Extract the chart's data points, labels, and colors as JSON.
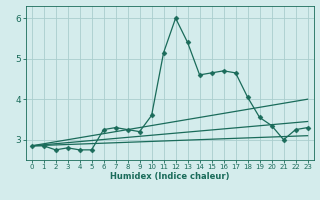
{
  "title": "",
  "xlabel": "Humidex (Indice chaleur)",
  "ylabel": "",
  "background_color": "#d4ecec",
  "grid_color": "#aacece",
  "line_color": "#1a6b5a",
  "xlim": [
    -0.5,
    23.5
  ],
  "ylim": [
    2.5,
    6.3
  ],
  "yticks": [
    3,
    4,
    5,
    6
  ],
  "xticks": [
    0,
    1,
    2,
    3,
    4,
    5,
    6,
    7,
    8,
    9,
    10,
    11,
    12,
    13,
    14,
    15,
    16,
    17,
    18,
    19,
    20,
    21,
    22,
    23
  ],
  "series": [
    {
      "x": [
        0,
        1,
        2,
        3,
        4,
        5,
        6,
        7,
        8,
        9,
        10,
        11,
        12,
        13,
        14,
        15,
        16,
        17,
        18,
        19,
        20,
        21,
        22,
        23
      ],
      "y": [
        2.85,
        2.85,
        2.75,
        2.8,
        2.75,
        2.75,
        3.25,
        3.3,
        3.25,
        3.2,
        3.6,
        5.15,
        6.0,
        5.4,
        4.6,
        4.65,
        4.7,
        4.65,
        4.05,
        3.55,
        3.35,
        3.0,
        3.25,
        3.3
      ],
      "marker": "D",
      "markersize": 2.5,
      "linewidth": 0.9
    },
    {
      "x": [
        0,
        23
      ],
      "y": [
        2.85,
        4.0
      ],
      "marker": null,
      "markersize": 0,
      "linewidth": 0.9
    },
    {
      "x": [
        0,
        23
      ],
      "y": [
        2.85,
        3.45
      ],
      "marker": null,
      "markersize": 0,
      "linewidth": 0.9
    },
    {
      "x": [
        0,
        23
      ],
      "y": [
        2.85,
        3.1
      ],
      "marker": null,
      "markersize": 0,
      "linewidth": 0.9
    }
  ]
}
